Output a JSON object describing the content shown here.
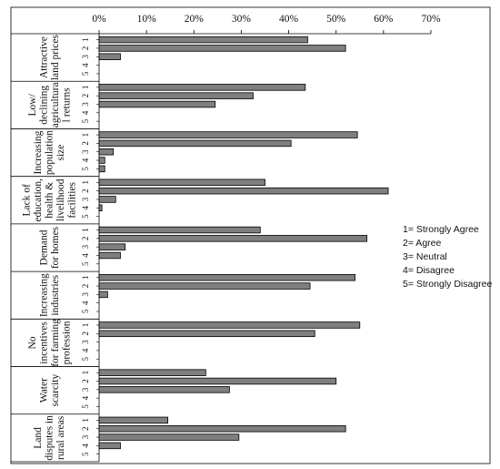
{
  "chart_data": {
    "type": "bar",
    "orientation": "horizontal",
    "xlim": [
      0,
      70
    ],
    "x_ticks": [
      "0%",
      "10%",
      "20%",
      "30%",
      "40%",
      "50%",
      "60%",
      "70%"
    ],
    "bar_color": "#7f7f7f",
    "groups": [
      {
        "label_lines": [
          "Attractive",
          "land prices"
        ],
        "ranks": [
          "1",
          "2",
          "3",
          "4",
          "5"
        ],
        "values": [
          44,
          52,
          4.5,
          0,
          0
        ]
      },
      {
        "label_lines": [
          "Low/",
          "declining",
          "agricultura",
          "l returns"
        ],
        "ranks": [
          "1",
          "2",
          "3",
          "4",
          "5"
        ],
        "values": [
          43.5,
          32.5,
          24.5,
          0,
          0
        ]
      },
      {
        "label_lines": [
          "Increasing",
          "population",
          "size"
        ],
        "ranks": [
          "1",
          "2",
          "3",
          "4",
          "5"
        ],
        "values": [
          54.5,
          40.5,
          3,
          1.2,
          1.2
        ]
      },
      {
        "label_lines": [
          "Lack of",
          "education,",
          "health &",
          "livelihood",
          "facilities"
        ],
        "ranks": [
          "1",
          "2",
          "3",
          "4",
          "5"
        ],
        "values": [
          35,
          61,
          3.5,
          0.6,
          0
        ]
      },
      {
        "label_lines": [
          "Demand",
          "for homes"
        ],
        "ranks": [
          "1",
          "2",
          "3",
          "4",
          "5"
        ],
        "values": [
          34,
          56.5,
          5.5,
          4.5,
          0
        ]
      },
      {
        "label_lines": [
          "Increasing",
          "industries"
        ],
        "ranks": [
          "1",
          "2",
          "3",
          "4",
          "5"
        ],
        "values": [
          54,
          44.5,
          1.8,
          0,
          0
        ]
      },
      {
        "label_lines": [
          "No",
          "incentives",
          "for farming",
          "profession"
        ],
        "ranks": [
          "1",
          "2",
          "3",
          "4",
          "5"
        ],
        "values": [
          55,
          45.5,
          0,
          0,
          0
        ]
      },
      {
        "label_lines": [
          "Water",
          "scarcity"
        ],
        "ranks": [
          "1",
          "2",
          "3",
          "4",
          "5"
        ],
        "values": [
          22.5,
          50,
          27.5,
          0,
          0
        ]
      },
      {
        "label_lines": [
          "Land",
          "disputes in",
          "rural areas"
        ],
        "ranks": [
          "1",
          "2",
          "3",
          "4",
          "5"
        ],
        "values": [
          14.5,
          52,
          29.5,
          4.5,
          0
        ]
      }
    ]
  },
  "legend": {
    "items": [
      "1= Strongly Agree",
      "2= Agree",
      "3= Neutral",
      "4= Disagree",
      "5= Strongly Disagree"
    ]
  }
}
